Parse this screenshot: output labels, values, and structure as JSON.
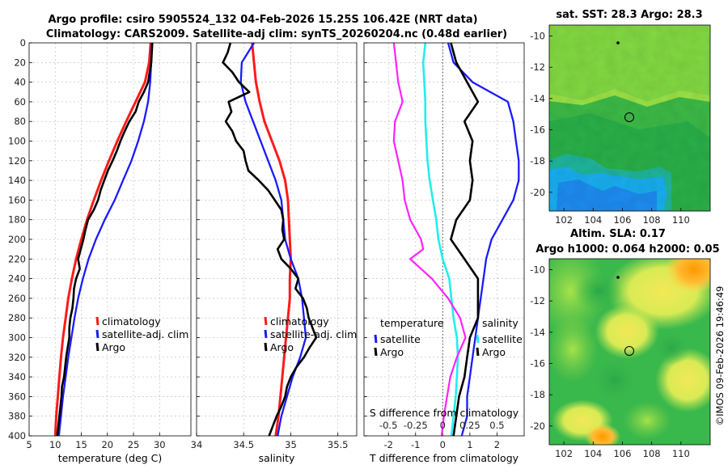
{
  "titles": {
    "line1": "Argo profile: csiro 5905524_132 04-Feb-2026 15.25S 106.42E (NRT data)",
    "line2": "Climatology: CARS2009. Satellite-adj clim: synTS_20260204.nc (0.48d earlier)"
  },
  "depth_ticks": [
    "0",
    "20",
    "40",
    "60",
    "80",
    "100",
    "120",
    "140",
    "160",
    "180",
    "200",
    "220",
    "240",
    "260",
    "280",
    "300",
    "320",
    "340",
    "360",
    "380",
    "400"
  ],
  "colors": {
    "climatology": "#ff1a1a",
    "satellite": "#1a1aff",
    "argo": "#000000",
    "s_diff": "#ff22ff",
    "t_diff": "#22eeee"
  },
  "chart_data": [
    {
      "type": "line",
      "name": "temperature",
      "xlabel": "temperature (deg C)",
      "ylabel": "depth",
      "xlim": [
        5,
        36
      ],
      "ylim": [
        0,
        400
      ],
      "x_ticks": [
        "5",
        "10",
        "15",
        "20",
        "25",
        "30"
      ],
      "legend": [
        "climatology",
        "satellite-adj. clim",
        "Argo"
      ],
      "series": [
        {
          "name": "climatology",
          "depth": [
            0,
            20,
            40,
            60,
            80,
            100,
            120,
            140,
            160,
            180,
            200,
            220,
            240,
            260,
            280,
            300,
            320,
            340,
            360,
            380,
            400
          ],
          "values": [
            28.3,
            28.0,
            27.2,
            25.4,
            23.6,
            21.9,
            20.3,
            18.8,
            17.4,
            16.1,
            15.0,
            14.0,
            13.2,
            12.5,
            12.0,
            11.5,
            11.1,
            10.8,
            10.5,
            10.2,
            10.0
          ]
        },
        {
          "name": "satellite-adj. clim",
          "depth": [
            0,
            20,
            40,
            60,
            80,
            100,
            120,
            140,
            160,
            180,
            200,
            220,
            240,
            260,
            280,
            300,
            320,
            340,
            360,
            380,
            400
          ],
          "values": [
            28.5,
            28.4,
            28.2,
            27.8,
            27.0,
            25.9,
            24.6,
            23.0,
            21.4,
            19.5,
            17.8,
            16.4,
            15.3,
            14.4,
            13.7,
            13.1,
            12.5,
            12.0,
            11.5,
            11.1,
            10.7
          ]
        },
        {
          "name": "Argo",
          "depth": [
            0,
            20,
            40,
            50,
            60,
            70,
            80,
            90,
            100,
            110,
            120,
            130,
            140,
            150,
            160,
            170,
            180,
            190,
            200,
            210,
            220,
            230,
            240,
            250,
            260,
            270,
            280,
            290,
            300,
            310,
            320,
            330,
            340,
            350,
            360,
            370,
            380,
            390,
            400
          ],
          "values": [
            28.6,
            28.4,
            27.8,
            27.0,
            26.0,
            25.4,
            24.2,
            23.3,
            22.5,
            21.8,
            21.0,
            20.1,
            19.4,
            18.7,
            18.2,
            17.4,
            16.3,
            15.8,
            15.4,
            14.9,
            14.4,
            14.7,
            14.0,
            13.6,
            13.5,
            13.3,
            12.9,
            12.7,
            12.7,
            12.4,
            12.1,
            11.9,
            11.7,
            11.3,
            11.2,
            11.0,
            10.8,
            10.6,
            10.4
          ]
        }
      ]
    },
    {
      "type": "line",
      "name": "salinity",
      "xlabel": "salinity",
      "xlim": [
        34,
        35.7
      ],
      "ylim": [
        0,
        400
      ],
      "x_ticks": [
        "34",
        "34.5",
        "35",
        "35.5"
      ],
      "legend": [
        "climatology",
        "satellite-adj. clim",
        "Argo"
      ],
      "series": [
        {
          "name": "climatology",
          "depth": [
            0,
            20,
            40,
            60,
            80,
            100,
            120,
            140,
            160,
            180,
            200,
            220,
            240,
            260,
            280,
            300,
            320,
            340,
            360,
            380,
            400
          ],
          "values": [
            34.59,
            34.61,
            34.63,
            34.67,
            34.72,
            34.8,
            34.88,
            34.94,
            34.97,
            34.98,
            34.99,
            35.0,
            34.99,
            34.99,
            34.97,
            34.95,
            34.93,
            34.91,
            34.89,
            34.87,
            34.84
          ]
        },
        {
          "name": "satellite-adj. clim",
          "depth": [
            0,
            20,
            40,
            60,
            80,
            100,
            120,
            140,
            160,
            180,
            200,
            220,
            240,
            260,
            280,
            300,
            320,
            340,
            360,
            380,
            400
          ],
          "values": [
            34.61,
            34.48,
            34.47,
            34.52,
            34.6,
            34.68,
            34.76,
            34.84,
            34.9,
            34.92,
            34.94,
            35.0,
            35.08,
            35.12,
            35.14,
            35.16,
            35.1,
            35.02,
            34.96,
            34.9,
            34.86
          ]
        },
        {
          "name": "Argo",
          "depth": [
            0,
            10,
            20,
            30,
            40,
            50,
            60,
            70,
            80,
            90,
            100,
            110,
            120,
            130,
            140,
            150,
            160,
            170,
            180,
            190,
            200,
            210,
            220,
            230,
            240,
            250,
            260,
            270,
            280,
            290,
            300,
            310,
            320,
            330,
            340,
            350,
            360,
            370,
            380,
            390,
            400
          ],
          "values": [
            34.36,
            34.33,
            34.28,
            34.38,
            34.45,
            34.56,
            34.34,
            34.37,
            34.31,
            34.38,
            34.42,
            34.5,
            34.52,
            34.55,
            34.66,
            34.76,
            34.83,
            34.9,
            34.92,
            34.91,
            34.93,
            34.86,
            34.9,
            35.0,
            35.08,
            35.05,
            35.13,
            35.17,
            35.19,
            35.23,
            35.27,
            35.2,
            35.14,
            35.06,
            35.0,
            34.96,
            34.94,
            34.9,
            34.85,
            34.81,
            34.77
          ]
        }
      ]
    },
    {
      "type": "line",
      "name": "differences",
      "xlabel": "T difference from climatology",
      "xlabel_top": "S difference from climatology",
      "xlim": [
        -2.9,
        3.0
      ],
      "ylim": [
        0,
        400
      ],
      "x_ticks": [
        "-2",
        "-1",
        "0",
        "1",
        "2"
      ],
      "x_ticks_top": [
        "-0.5",
        "-0.25",
        "0",
        "0.25",
        "0.5"
      ],
      "legend_titles": [
        "temperature",
        "salinity"
      ],
      "legend": [
        "satellite",
        "Argo"
      ],
      "series": [
        {
          "name": "S satellite-clim",
          "depth": [
            0,
            20,
            40,
            60,
            80,
            100,
            120,
            140,
            160,
            180,
            200,
            220,
            240,
            260,
            280,
            300,
            320,
            340,
            360,
            380,
            400
          ],
          "values": [
            -0.16,
            -0.18,
            -0.17,
            -0.16,
            -0.16,
            -0.15,
            -0.14,
            -0.12,
            -0.09,
            -0.06,
            -0.04,
            0.0,
            0.06,
            0.08,
            0.1,
            0.13,
            0.14,
            0.13,
            0.12,
            0.1,
            0.08
          ]
        },
        {
          "name": "S Argo-clim",
          "depth": [
            0,
            20,
            40,
            60,
            80,
            100,
            120,
            140,
            160,
            180,
            200,
            210,
            220,
            230,
            240,
            260,
            280,
            300,
            320,
            340,
            360,
            380,
            400
          ],
          "values": [
            -0.45,
            -0.43,
            -0.41,
            -0.37,
            -0.44,
            -0.45,
            -0.41,
            -0.37,
            -0.35,
            -0.3,
            -0.2,
            -0.18,
            -0.3,
            -0.2,
            -0.1,
            0.05,
            0.16,
            0.21,
            0.13,
            0.07,
            0.04,
            0.01,
            -0.01
          ]
        },
        {
          "name": "T satellite-clim",
          "depth": [
            0,
            20,
            40,
            60,
            80,
            100,
            120,
            140,
            160,
            180,
            200,
            220,
            240,
            260,
            280,
            300,
            320,
            340,
            360,
            380,
            400
          ],
          "values": [
            0.2,
            0.4,
            1.1,
            2.4,
            2.6,
            2.7,
            2.8,
            2.8,
            2.6,
            2.2,
            1.8,
            1.6,
            1.5,
            1.4,
            1.3,
            1.2,
            1.1,
            1.0,
            0.9,
            0.9,
            0.7
          ]
        },
        {
          "name": "T Argo-clim",
          "depth": [
            0,
            20,
            40,
            60,
            80,
            100,
            120,
            140,
            160,
            180,
            200,
            220,
            240,
            260,
            280,
            300,
            320,
            340,
            360,
            380,
            400
          ],
          "values": [
            0.3,
            0.5,
            0.9,
            1.3,
            0.8,
            1.1,
            1.0,
            1.1,
            1.0,
            0.5,
            0.3,
            0.8,
            1.3,
            1.3,
            1.3,
            1.0,
            0.9,
            0.8,
            0.6,
            0.5,
            0.4
          ]
        }
      ]
    },
    {
      "type": "heatmap",
      "name": "sst_map",
      "title": "sat. SST: 28.3 Argo: 28.3",
      "x_ticks": [
        "102",
        "104",
        "106",
        "108",
        "110"
      ],
      "y_ticks": [
        "-10",
        "-12",
        "-14",
        "-16",
        "-18",
        "-20"
      ],
      "xlim": [
        101,
        112
      ],
      "ylim": [
        -21.2,
        -9.3
      ],
      "argo_position": {
        "lon": 106.42,
        "lat": -15.25
      },
      "prev_position": {
        "lon": 105.6,
        "lat": -10.6
      }
    },
    {
      "type": "heatmap",
      "name": "sla_map",
      "title_line1": "Altim. SLA: 0.17",
      "title_line2": "Argo h1000: 0.064 h2000: 0.05",
      "x_ticks": [
        "102",
        "104",
        "106",
        "108",
        "110"
      ],
      "y_ticks": [
        "-10",
        "-12",
        "-14",
        "-16",
        "-18",
        "-20"
      ],
      "xlim": [
        101,
        112
      ],
      "ylim": [
        -21.2,
        -9.3
      ],
      "argo_position": {
        "lon": 106.42,
        "lat": -15.25
      },
      "prev_position": {
        "lon": 105.6,
        "lat": -10.6
      }
    }
  ],
  "watermark": "©IMOS 09-Feb-2026 19:46:49"
}
